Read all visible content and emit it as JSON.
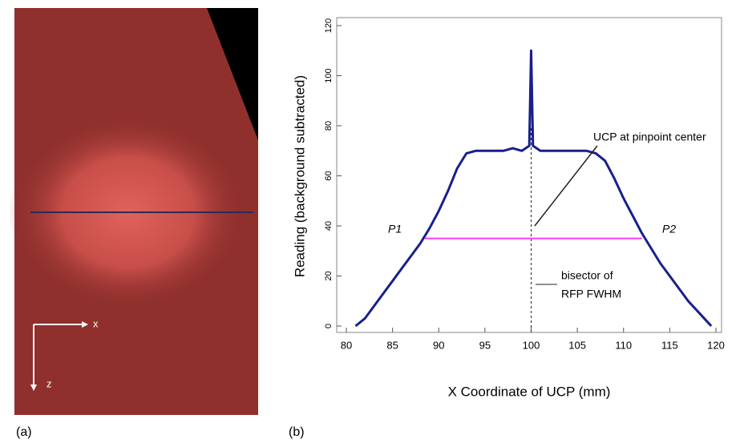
{
  "image_panel": {
    "label": "(a)",
    "x_arrow_label": "x",
    "z_arrow_label": "z"
  },
  "chart_data": {
    "type": "line",
    "panel_label": "(b)",
    "x_label": "X Coordinate of UCP (mm)",
    "y_label": "Reading (background subtracted)",
    "x": [
      81,
      82,
      83,
      84,
      85,
      86,
      87,
      88,
      89,
      90,
      91,
      92,
      93,
      94,
      95,
      96,
      97,
      98,
      99,
      99.8,
      100,
      100.2,
      101,
      102,
      103,
      104,
      105,
      106,
      107,
      108,
      109,
      110,
      111,
      112,
      113,
      114,
      115,
      116,
      117,
      118,
      119,
      119.5
    ],
    "series": [
      {
        "color": "#1a1f8c",
        "values": [
          0,
          3,
          8,
          13,
          18,
          23,
          28,
          33,
          39,
          46,
          54,
          63,
          69,
          70,
          70,
          70,
          70,
          71,
          70,
          72,
          110,
          72,
          70,
          70,
          70,
          70,
          70,
          70,
          69,
          66,
          59,
          51,
          44,
          37,
          31,
          25,
          20,
          15,
          10,
          6,
          2,
          0
        ]
      }
    ],
    "fwhm_line": {
      "value": 35,
      "x": [
        88.5,
        112
      ],
      "color": "#ff3cff"
    },
    "bisector_x": 100,
    "xlim": [
      80,
      120
    ],
    "xticks": [
      80,
      85,
      90,
      95,
      100,
      105,
      110,
      115,
      120
    ],
    "ylim": [
      0,
      120
    ],
    "yticks": [
      0,
      20,
      40,
      60,
      80,
      100,
      120
    ],
    "annotations": {
      "ucp": "UCP at pinpoint center",
      "bisector_1": "bisector of",
      "bisector_2": "RFP FWHM",
      "p1": "P1",
      "p2": "P2"
    }
  }
}
